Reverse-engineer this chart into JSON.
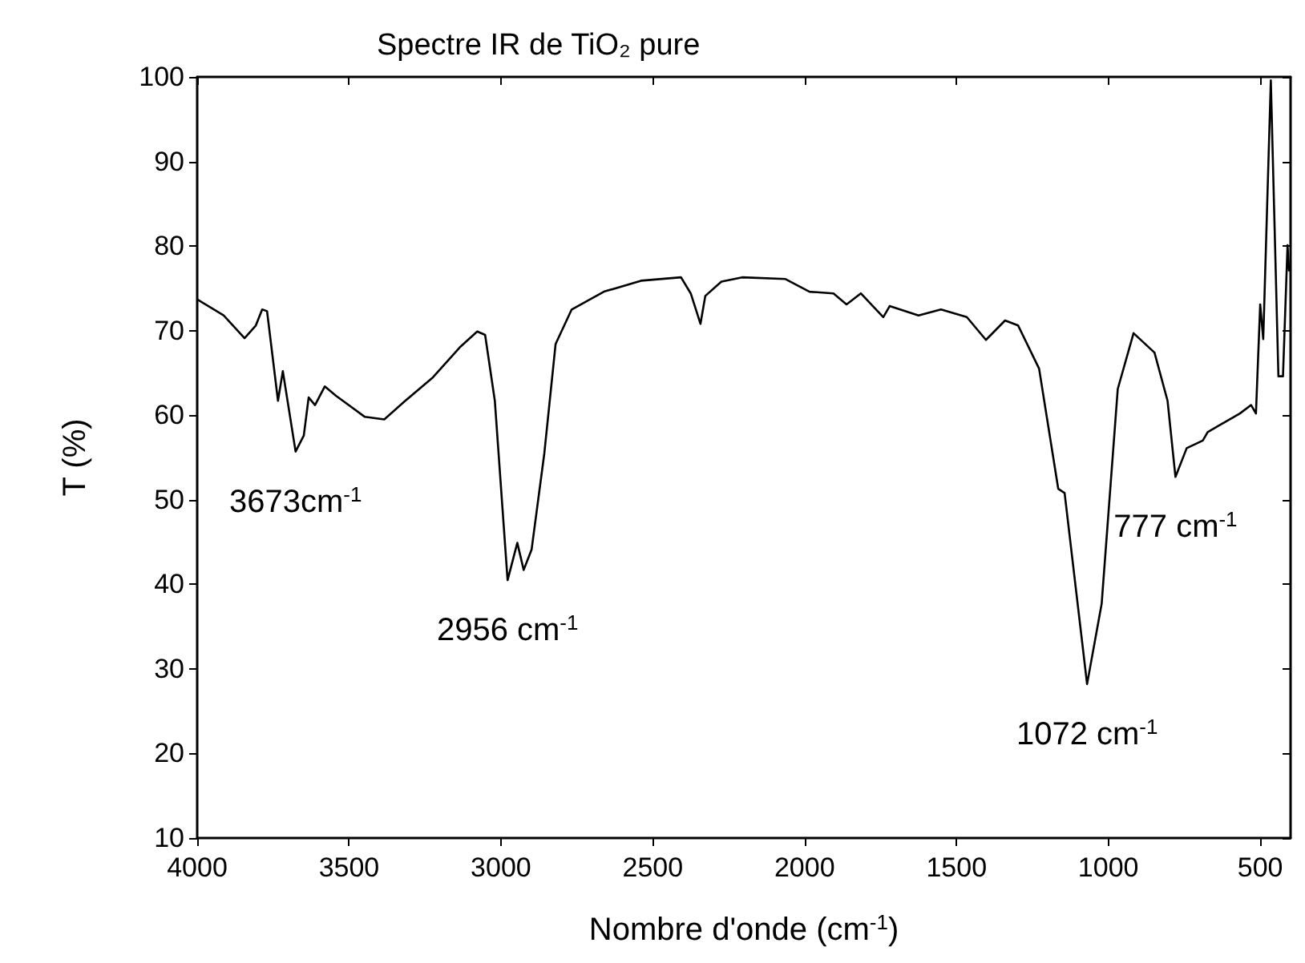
{
  "chart_data": {
    "type": "line",
    "title": "Spectre IR de TiO₂ pure",
    "xlabel": "Nombre d'onde (cm$^{-1}$)",
    "ylabel": "T (%)",
    "xlim": [
      4000,
      400
    ],
    "xticks": [
      4000,
      3500,
      3000,
      2500,
      2000,
      1500,
      1000,
      500
    ],
    "ylim": [
      10,
      100
    ],
    "yticks": [
      10,
      20,
      30,
      40,
      50,
      60,
      70,
      80,
      90,
      100
    ],
    "grid": false,
    "marker": "none",
    "line_style": "solid",
    "series": [
      {
        "color": "#000000",
        "x": [
          4000,
          3913,
          3844,
          3807,
          3786,
          3770,
          3734,
          3718,
          3676,
          3649,
          3633,
          3612,
          3580,
          3543,
          3448,
          3384,
          3315,
          3226,
          3136,
          3078,
          3052,
          3020,
          2978,
          2946,
          2925,
          2899,
          2857,
          2820,
          2767,
          2661,
          2539,
          2407,
          2375,
          2343,
          2327,
          2274,
          2206,
          2063,
          1984,
          1905,
          1862,
          1815,
          1741,
          1720,
          1625,
          1551,
          1466,
          1403,
          1340,
          1297,
          1228,
          1165,
          1144,
          1070,
          1022,
          969,
          917,
          848,
          805,
          779,
          742,
          689,
          673,
          567,
          530,
          514,
          500,
          490,
          465,
          440,
          425,
          410,
          405
        ],
        "values": [
          73.7,
          71.8,
          69.1,
          70.6,
          72.5,
          72.3,
          61.7,
          65.2,
          55.7,
          57.6,
          62.1,
          61.2,
          63.4,
          62.3,
          59.8,
          59.5,
          61.7,
          64.4,
          68.0,
          69.9,
          69.5,
          61.7,
          40.5,
          44.9,
          41.7,
          44.1,
          55.5,
          68.4,
          72.5,
          74.6,
          75.9,
          76.3,
          74.4,
          70.8,
          74.1,
          75.8,
          76.3,
          76.1,
          74.6,
          74.4,
          73.1,
          74.4,
          71.6,
          72.9,
          71.8,
          72.5,
          71.6,
          68.9,
          71.2,
          70.6,
          65.5,
          51.3,
          50.8,
          28.2,
          37.7,
          63.1,
          69.7,
          67.4,
          61.7,
          52.7,
          56.1,
          57.0,
          58.0,
          60.2,
          61.2,
          60.2,
          73.1,
          69.0,
          99.6,
          64.6,
          64.6,
          80.1,
          77.0
        ]
      }
    ],
    "annotations": [
      {
        "text": "3673cm$^{-1}$",
        "x": 3676,
        "y": 55.7
      },
      {
        "text": "2956 cm$^{-1}$",
        "x": 2978,
        "y": 40.5
      },
      {
        "text": "1072 cm$^{-1}$",
        "x": 1070,
        "y": 28.2
      },
      {
        "text": "777 cm$^{-1}$",
        "x": 779,
        "y": 52.7
      }
    ]
  }
}
